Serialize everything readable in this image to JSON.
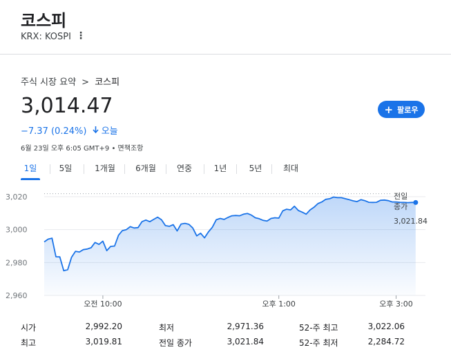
{
  "header": {
    "title": "코스피",
    "ticker": "KRX: KOSPI",
    "menu_icon": "more-vert-icon"
  },
  "breadcrumb": {
    "parent": "주식 시장 요약",
    "separator": ">",
    "current": "코스피"
  },
  "quote": {
    "price": "3,014.47",
    "change": "−7.37 (0.24%)",
    "change_icon": "arrow-down-icon",
    "period": "오늘",
    "meta": "6월 23일 오후 6:05 GMT+9 • 면책조항",
    "change_color": "#1a73e8"
  },
  "follow_button": {
    "label": "팔로우",
    "icon": "plus-icon",
    "color": "#1a73e8"
  },
  "tabs": [
    {
      "label": "1일",
      "active": true
    },
    {
      "label": "5일",
      "active": false
    },
    {
      "label": "1개월",
      "active": false
    },
    {
      "label": "6개월",
      "active": false
    },
    {
      "label": "연중",
      "active": false
    },
    {
      "label": "1년",
      "active": false
    },
    {
      "label": "5년",
      "active": false
    },
    {
      "label": "최대",
      "active": false
    }
  ],
  "chart_data": {
    "type": "area",
    "y_ticks": [
      "3,020",
      "3,000",
      "2,980",
      "2,960"
    ],
    "y_tick_values": [
      3020,
      3000,
      2980,
      2960
    ],
    "ylim": [
      2960,
      3022
    ],
    "x_ticks": [
      "오전 10:00",
      "오후 1:00",
      "오후 3:00"
    ],
    "x_tick_minutes": [
      60,
      240,
      360
    ],
    "x_range_minutes": [
      0,
      390
    ],
    "previous_close_label": "전일\n종가",
    "previous_close_value": "3,021.84",
    "previous_close": 3021.84,
    "line_color": "#1a73e8",
    "series": [
      {
        "x_minutes": [
          0,
          4,
          8,
          12,
          16,
          20,
          24,
          28,
          32,
          36,
          40,
          44,
          48,
          52,
          56,
          60,
          64,
          68,
          72,
          76,
          80,
          84,
          88,
          92,
          96,
          100,
          104,
          108,
          112,
          116,
          120,
          124,
          128,
          132,
          136,
          140,
          144,
          148,
          152,
          156,
          160,
          164,
          168,
          172,
          176,
          180,
          184,
          188,
          192,
          196,
          200,
          204,
          208,
          212,
          216,
          220,
          224,
          228,
          232,
          236,
          240,
          244,
          248,
          252,
          256,
          260,
          264,
          268,
          272,
          276,
          280,
          284,
          288,
          292,
          296,
          300,
          304,
          308,
          312,
          316,
          320,
          324,
          328,
          332,
          336,
          340,
          344,
          348,
          352,
          356,
          360,
          364,
          368,
          372,
          376,
          380
        ],
        "values": [
          2992.5,
          2994.2,
          2994.8,
          2983.5,
          2983.4,
          2975.0,
          2975.6,
          2983.2,
          2986.8,
          2986.4,
          2987.8,
          2988.2,
          2989.0,
          2992.2,
          2991.0,
          2993.0,
          2987.2,
          2989.8,
          2990.0,
          2996.6,
          2999.4,
          3000.0,
          3001.8,
          3001.0,
          3001.2,
          3004.8,
          3005.8,
          3004.8,
          3006.2,
          3007.6,
          3006.0,
          3002.4,
          3002.0,
          3003.0,
          2999.2,
          3003.4,
          3003.8,
          3003.2,
          3001.0,
          2996.2,
          2997.8,
          2995.0,
          2998.6,
          3001.4,
          3006.0,
          3006.8,
          3006.2,
          3007.4,
          3008.4,
          3008.6,
          3008.4,
          3009.4,
          3009.8,
          3008.8,
          3007.2,
          3006.6,
          3005.6,
          3005.2,
          3006.8,
          3007.2,
          3007.0,
          3011.4,
          3012.4,
          3012.0,
          3014.2,
          3011.6,
          3010.6,
          3009.4,
          3012.0,
          3013.6,
          3015.8,
          3016.8,
          3018.4,
          3018.8,
          3019.8,
          3019.4,
          3019.4,
          3018.8,
          3018.2,
          3017.5,
          3017.0,
          3018.2,
          3017.6,
          3016.6,
          3016.5,
          3016.6,
          3017.8,
          3018.0,
          3017.6,
          3016.8,
          3016.8,
          3016.6,
          3016.5,
          3016.4,
          3016.5,
          3016.5
        ]
      }
    ]
  },
  "stats": {
    "col1": [
      {
        "label": "시가",
        "value": "2,992.20"
      },
      {
        "label": "최고",
        "value": "3,019.81"
      }
    ],
    "col2": [
      {
        "label": "최저",
        "value": "2,971.36"
      },
      {
        "label": "전일 종가",
        "value": "3,021.84"
      }
    ],
    "col3": [
      {
        "label": "52-주 최고",
        "value": "3,022.06"
      },
      {
        "label": "52-주 최저",
        "value": "2,284.72"
      }
    ]
  }
}
